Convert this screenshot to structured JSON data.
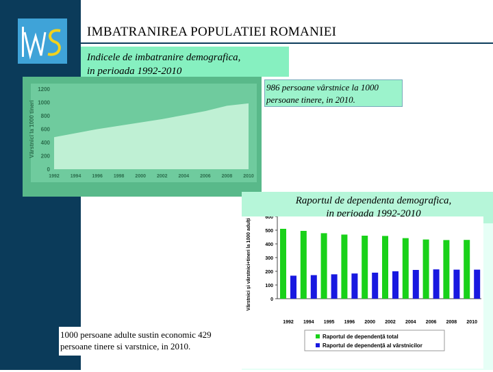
{
  "header": {
    "title": "IMBATRANIREA  POPULATIEI  ROMANIEI"
  },
  "logo_icon": "ins-logo",
  "colors": {
    "sidebar": "#0b3b5a",
    "logo": "#3fa3d8",
    "caption_box": "#86f0c0",
    "chart1_bg": "#59b98a",
    "bar_total": "#19d119",
    "bar_elderly": "#1818e0"
  },
  "box1": {
    "line1": "Indicele de imbatranire demografica,",
    "line2": "in perioada 1992-2010"
  },
  "note1": {
    "line1": "986 persoane vârstnice la 1000",
    "line2": "persoane tinere, in 2010."
  },
  "box2": {
    "line1": "Raportul de dependenta demografica,",
    "line2": "in perioada 1992-2010"
  },
  "note2": {
    "line1": "1000 persoane adulte sustin economic 429",
    "line2": "persoane tinere si varstnice, in 2010."
  },
  "chart_data": [
    {
      "type": "area",
      "title": "",
      "ylabel": "Vârstnici la 1000 tineri",
      "x": [
        "1992",
        "1994",
        "1996",
        "1998",
        "2000",
        "2002",
        "2004",
        "2006",
        "2008",
        "2010"
      ],
      "y": [
        480,
        540,
        600,
        650,
        700,
        750,
        810,
        870,
        950,
        986
      ],
      "ylim": [
        0,
        1200
      ],
      "yticks": [
        0,
        200,
        400,
        600,
        800,
        1000,
        1200
      ],
      "grid": false
    },
    {
      "type": "bar",
      "title": "",
      "ylabel": "Vârstnici și vârstnici+tineri la 1000 adulți",
      "categories": [
        "1992",
        "1994",
        "1995",
        "1996",
        "2000",
        "2002",
        "2004",
        "2006",
        "2008",
        "2010"
      ],
      "ylim": [
        0,
        600
      ],
      "yticks": [
        0,
        100,
        200,
        300,
        400,
        500,
        600
      ],
      "legend_position": "bottom",
      "series": [
        {
          "name": "Raportul de dependență total",
          "values": [
            510,
            495,
            478,
            468,
            460,
            458,
            442,
            432,
            428,
            429
          ],
          "color": "#19d119"
        },
        {
          "name": "Raportul de dependență al vârstnicilor",
          "values": [
            168,
            172,
            178,
            184,
            190,
            200,
            210,
            214,
            212,
            212
          ],
          "color": "#1818e0"
        }
      ]
    }
  ]
}
